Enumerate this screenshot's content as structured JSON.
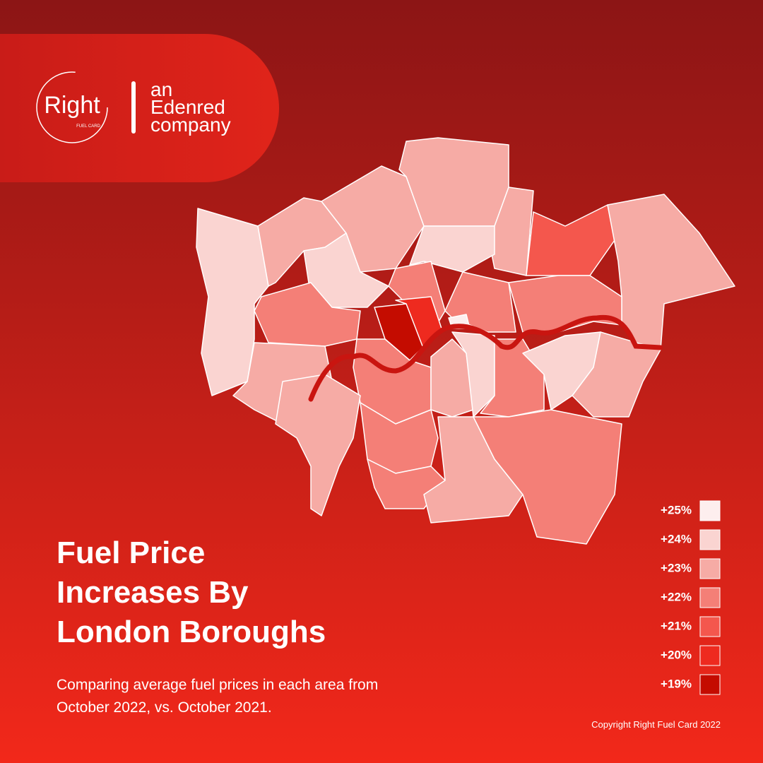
{
  "logo": {
    "name": "Right",
    "tagline": "FUEL CARD",
    "partner": [
      "an",
      "Edenred",
      "company"
    ]
  },
  "title": [
    "Fuel Price",
    "Increases By",
    "London Boroughs"
  ],
  "subtitle": [
    "Comparing average fuel prices in each area from",
    "October 2022, vs. October 2021."
  ],
  "legend": [
    {
      "label": "+25%",
      "color": "#fdeeee"
    },
    {
      "label": "+24%",
      "color": "#fad4d1"
    },
    {
      "label": "+23%",
      "color": "#f6aba5"
    },
    {
      "label": "+22%",
      "color": "#f47f77"
    },
    {
      "label": "+21%",
      "color": "#f4574d"
    },
    {
      "label": "+20%",
      "color": "#ee2a1f"
    },
    {
      "label": "+19%",
      "color": "#c40c00"
    }
  ],
  "copyright": "Copyright Right Fuel Card 2022"
}
